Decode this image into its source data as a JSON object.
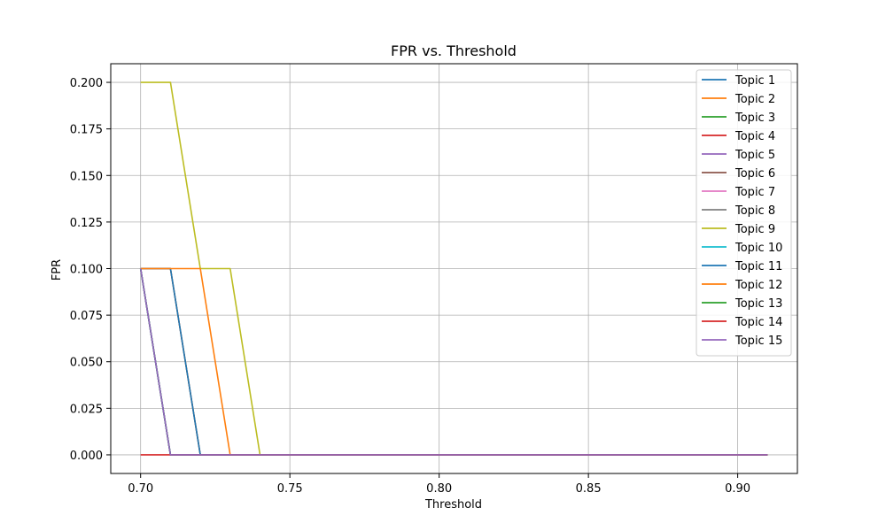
{
  "chart_data": {
    "type": "line",
    "title": "FPR vs. Threshold",
    "xlabel": "Threshold",
    "ylabel": "FPR",
    "xlim": [
      0.69,
      0.92
    ],
    "ylim": [
      -0.01,
      0.21
    ],
    "xticks": [
      0.7,
      0.75,
      0.8,
      0.85,
      0.9
    ],
    "xtick_labels": [
      "0.70",
      "0.75",
      "0.80",
      "0.85",
      "0.90"
    ],
    "yticks": [
      0.0,
      0.025,
      0.05,
      0.075,
      0.1,
      0.125,
      0.15,
      0.175,
      0.2
    ],
    "ytick_labels": [
      "0.000",
      "0.025",
      "0.050",
      "0.075",
      "0.100",
      "0.125",
      "0.150",
      "0.175",
      "0.200"
    ],
    "grid": true,
    "legend_position": "top-right",
    "x": [
      0.7,
      0.71,
      0.72,
      0.73,
      0.74,
      0.75,
      0.76,
      0.77,
      0.78,
      0.79,
      0.8,
      0.81,
      0.82,
      0.83,
      0.84,
      0.85,
      0.86,
      0.87,
      0.88,
      0.89,
      0.9,
      0.91
    ],
    "series": [
      {
        "name": "Topic 1",
        "color": "#1f77b4",
        "values": [
          0.1,
          0,
          0,
          0,
          0,
          0,
          0,
          0,
          0,
          0,
          0,
          0,
          0,
          0,
          0,
          0,
          0,
          0,
          0,
          0,
          0,
          0
        ]
      },
      {
        "name": "Topic 2",
        "color": "#ff7f0e",
        "values": [
          0.1,
          0.1,
          0,
          0,
          0,
          0,
          0,
          0,
          0,
          0,
          0,
          0,
          0,
          0,
          0,
          0,
          0,
          0,
          0,
          0,
          0,
          0
        ]
      },
      {
        "name": "Topic 3",
        "color": "#2ca02c",
        "values": [
          0.1,
          0,
          0,
          0,
          0,
          0,
          0,
          0,
          0,
          0,
          0,
          0,
          0,
          0,
          0,
          0,
          0,
          0,
          0,
          0,
          0,
          0
        ]
      },
      {
        "name": "Topic 4",
        "color": "#d62728",
        "values": [
          0.1,
          0,
          0,
          0,
          0,
          0,
          0,
          0,
          0,
          0,
          0,
          0,
          0,
          0,
          0,
          0,
          0,
          0,
          0,
          0,
          0,
          0
        ]
      },
      {
        "name": "Topic 5",
        "color": "#9467bd",
        "values": [
          0.1,
          0,
          0,
          0,
          0,
          0,
          0,
          0,
          0,
          0,
          0,
          0,
          0,
          0,
          0,
          0,
          0,
          0,
          0,
          0,
          0,
          0
        ]
      },
      {
        "name": "Topic 6",
        "color": "#8c564b",
        "values": [
          0.1,
          0.1,
          0,
          0,
          0,
          0,
          0,
          0,
          0,
          0,
          0,
          0,
          0,
          0,
          0,
          0,
          0,
          0,
          0,
          0,
          0,
          0
        ]
      },
      {
        "name": "Topic 7",
        "color": "#e377c2",
        "values": [
          0.1,
          0,
          0,
          0,
          0,
          0,
          0,
          0,
          0,
          0,
          0,
          0,
          0,
          0,
          0,
          0,
          0,
          0,
          0,
          0,
          0,
          0
        ]
      },
      {
        "name": "Topic 8",
        "color": "#7f7f7f",
        "values": [
          0.1,
          0,
          0,
          0,
          0,
          0,
          0,
          0,
          0,
          0,
          0,
          0,
          0,
          0,
          0,
          0,
          0,
          0,
          0,
          0,
          0,
          0
        ]
      },
      {
        "name": "Topic 9",
        "color": "#bcbd22",
        "values": [
          0.2,
          0.2,
          0.1,
          0.1,
          0,
          0,
          0,
          0,
          0,
          0,
          0,
          0,
          0,
          0,
          0,
          0,
          0,
          0,
          0,
          0,
          0,
          0
        ]
      },
      {
        "name": "Topic 10",
        "color": "#17becf",
        "values": [
          0.1,
          0,
          0,
          0,
          0,
          0,
          0,
          0,
          0,
          0,
          0,
          0,
          0,
          0,
          0,
          0,
          0,
          0,
          0,
          0,
          0,
          0
        ]
      },
      {
        "name": "Topic 11",
        "color": "#1f77b4",
        "values": [
          0.1,
          0.1,
          0,
          0,
          0,
          0,
          0,
          0,
          0,
          0,
          0,
          0,
          0,
          0,
          0,
          0,
          0,
          0,
          0,
          0,
          0,
          0
        ]
      },
      {
        "name": "Topic 12",
        "color": "#ff7f0e",
        "values": [
          0.1,
          0.1,
          0.1,
          0,
          0,
          0,
          0,
          0,
          0,
          0,
          0,
          0,
          0,
          0,
          0,
          0,
          0,
          0,
          0,
          0,
          0,
          0
        ]
      },
      {
        "name": "Topic 13",
        "color": "#2ca02c",
        "values": [
          0.1,
          0,
          0,
          0,
          0,
          0,
          0,
          0,
          0,
          0,
          0,
          0,
          0,
          0,
          0,
          0,
          0,
          0,
          0,
          0,
          0,
          0
        ]
      },
      {
        "name": "Topic 14",
        "color": "#d62728",
        "values": [
          0,
          0,
          0,
          0,
          0,
          0,
          0,
          0,
          0,
          0,
          0,
          0,
          0,
          0,
          0,
          0,
          0,
          0,
          0,
          0,
          0,
          0
        ]
      },
      {
        "name": "Topic 15",
        "color": "#9467bd",
        "values": [
          0.1,
          0,
          0,
          0,
          0,
          0,
          0,
          0,
          0,
          0,
          0,
          0,
          0,
          0,
          0,
          0,
          0,
          0,
          0,
          0,
          0,
          0
        ]
      }
    ]
  }
}
